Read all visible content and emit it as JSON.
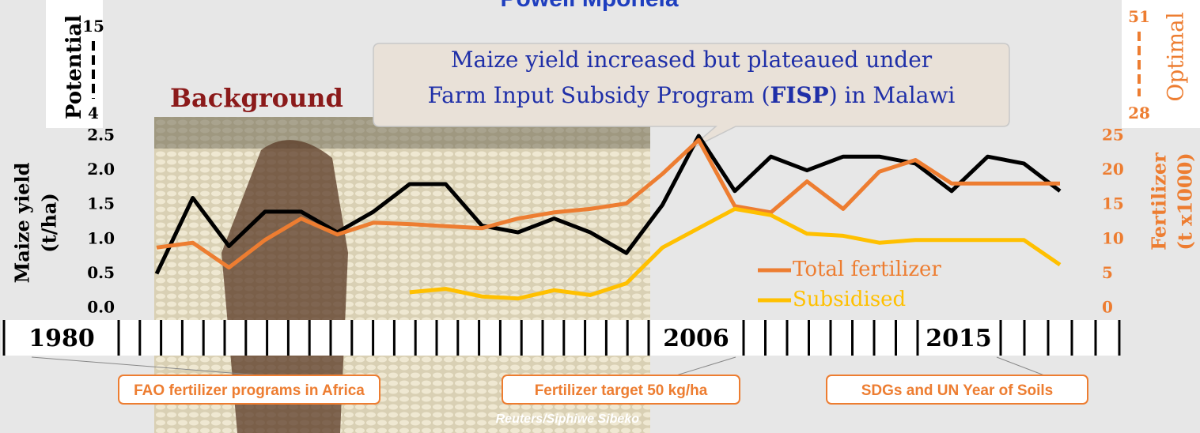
{
  "slide": {
    "title": "Powell Mponela",
    "heading": "Background",
    "callout": {
      "line1": "Maize yield increased but plateaued under",
      "line2_start": "Farm Input Subsidy Program (",
      "line2_bold": "FISP",
      "line2_end": ") in Malawi"
    },
    "potential": {
      "label": "Potential",
      "high": "15",
      "low": "4"
    },
    "optimal": {
      "label": "Optimal",
      "high": "51",
      "low": "28"
    },
    "timeline": [
      "1980",
      "2006",
      "2015"
    ],
    "events": [
      "FAO fertilizer programs in Africa",
      "Fertilizer target 50 kg/ha",
      "SDGs and UN Year of Soils"
    ],
    "credit": "Reuters/Siphiwe Sibeko"
  },
  "chart_data": {
    "type": "line",
    "categories": [
      null,
      null,
      null,
      null,
      null,
      null,
      null,
      null,
      null,
      null,
      null,
      null,
      null,
      null,
      null,
      null,
      null,
      null,
      null,
      null,
      null,
      null,
      null,
      null,
      null,
      null
    ],
    "series": [
      {
        "color": "#000000",
        "values": [
          0.5,
          1.6,
          0.9,
          1.4,
          1.4,
          1.1,
          1.4,
          1.8,
          1.8,
          1.2,
          1.1,
          1.3,
          1.1,
          0.8,
          1.5,
          2.5,
          1.7,
          2.2,
          2.0,
          2.2,
          2.2,
          2.1,
          1.7,
          2.2,
          2.1,
          1.7
        ]
      },
      {
        "name": "Total fertilizer",
        "color": "#ed7d31",
        "axis": "y2",
        "values": [
          8.8,
          9.5,
          5.9,
          9.9,
          13.0,
          10.7,
          12.4,
          12.2,
          11.9,
          11.6,
          13.0,
          13.9,
          14.4,
          15.2,
          19.5,
          24.4,
          14.8,
          13.9,
          18.4,
          14.4,
          19.8,
          21.5,
          18.1,
          18.1,
          18.1,
          18.1
        ]
      },
      {
        "name": "Subsidised",
        "color": "#ffc000",
        "axis": "y2",
        "values": [
          null,
          null,
          null,
          null,
          null,
          null,
          null,
          2.3,
          2.8,
          1.7,
          1.4,
          2.6,
          1.9,
          3.6,
          8.8,
          11.6,
          14.4,
          13.5,
          10.8,
          10.5,
          9.5,
          9.9,
          9.9,
          9.9,
          9.9,
          6.3
        ]
      }
    ],
    "ylabel": [
      "Maize yield",
      "(t/ha)"
    ],
    "y2label": [
      "Fertilizer",
      "(t x1000)"
    ],
    "ylim": [
      0,
      2.5
    ],
    "yticks": [
      {
        "value": 0,
        "label": "0.0"
      },
      {
        "value": 0.5,
        "label": "0.5"
      },
      {
        "value": 1,
        "label": "1.0"
      },
      {
        "value": 1.5,
        "label": "1.5"
      },
      {
        "value": 2,
        "label": "2.0"
      },
      {
        "value": 2.5,
        "label": "2.5"
      }
    ],
    "y2lim": [
      0,
      25
    ],
    "y2ticks": [
      0,
      5,
      10,
      15,
      20,
      25
    ]
  }
}
